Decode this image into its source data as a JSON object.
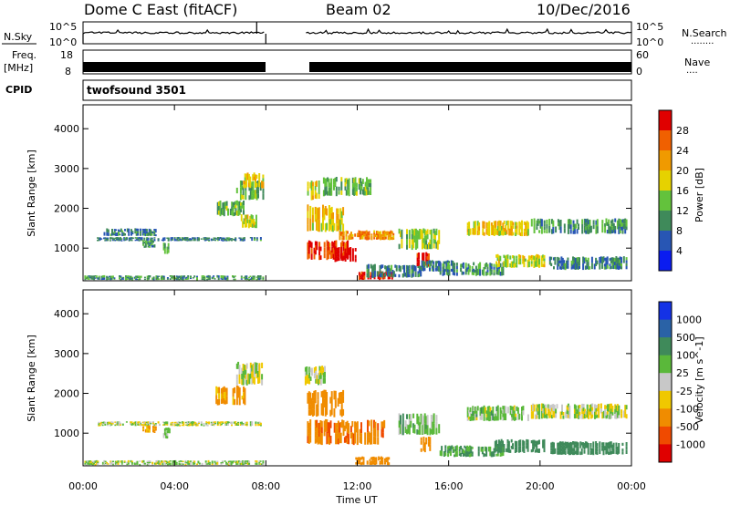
{
  "header": {
    "station": "Dome C East (fitACF)",
    "beam": "Beam 02",
    "date": "10/Dec/2016"
  },
  "strip_labels": {
    "nsky": "N.Sky",
    "nsearch": "N.Search",
    "nsearch_dots": "........",
    "freq_top": "Freq.",
    "freq_unit": "[MHz]",
    "nave": "Nave",
    "nave_dots": "....",
    "cpid": "CPID",
    "cpid_value": "twofsound 3501"
  },
  "strip_ticks": {
    "noise_left": [
      "10^5",
      "10^0"
    ],
    "noise_right": [
      "10^5",
      "10^0"
    ],
    "freq_left": [
      "18",
      "8"
    ],
    "nave_right": [
      "60",
      "0"
    ]
  },
  "x_axis": {
    "label": "Time UT",
    "ticks": [
      "00:00",
      "04:00",
      "08:00",
      "12:00",
      "16:00",
      "20:00",
      "00:00"
    ],
    "range_hours": [
      0,
      24
    ],
    "data_gap_hours": [
      8.0,
      9.7
    ]
  },
  "y_axis": {
    "label": "Slant Range [km]",
    "ticks": [
      "1000",
      "2000",
      "3000",
      "4000"
    ],
    "range_km": [
      180,
      4600
    ]
  },
  "colorbar_power": {
    "label": "Power [dB]",
    "ticks": [
      "4",
      "8",
      "12",
      "16",
      "20",
      "24",
      "28"
    ],
    "colors": [
      "#0a1cf0",
      "#2856b4",
      "#3f8a5a",
      "#63c23c",
      "#e6d200",
      "#f09a00",
      "#f06000",
      "#e00000"
    ]
  },
  "colorbar_velocity": {
    "label": "Velocity [m s^-1]",
    "ticks": [
      "1000",
      "500",
      "100",
      "25",
      "-25",
      "-100",
      "-500",
      "-1000"
    ],
    "colors": [
      "#1432e6",
      "#2a62a6",
      "#3f8a5a",
      "#5ab83a",
      "#c8c8c8",
      "#f0c800",
      "#f08c00",
      "#f04a00",
      "#e00000"
    ]
  },
  "chart_data": [
    {
      "type": "heatmap",
      "title": "Power",
      "xlabel": "Time UT",
      "ylabel": "Slant Range [km]",
      "xlim": [
        0,
        24
      ],
      "ylim": [
        180,
        4600
      ],
      "colorbar_label": "Power [dB]",
      "clim": [
        0,
        30
      ],
      "regions": [
        {
          "t0": 0.0,
          "t1": 7.9,
          "r0": 200,
          "r1": 320,
          "value": 10
        },
        {
          "t0": 0.6,
          "t1": 7.8,
          "r0": 1180,
          "r1": 1280,
          "value": 8
        },
        {
          "t0": 0.9,
          "t1": 3.2,
          "r0": 1300,
          "r1": 1500,
          "value": 8
        },
        {
          "t0": 2.6,
          "t1": 3.2,
          "r0": 1000,
          "r1": 1200,
          "value": 10
        },
        {
          "t0": 3.5,
          "t1": 3.8,
          "r0": 850,
          "r1": 1150,
          "value": 14
        },
        {
          "t0": 5.8,
          "t1": 7.1,
          "r0": 1800,
          "r1": 2200,
          "value": 12
        },
        {
          "t0": 6.7,
          "t1": 7.9,
          "r0": 2200,
          "r1": 2700,
          "value": 12
        },
        {
          "t0": 7.0,
          "t1": 7.9,
          "r0": 2500,
          "r1": 2900,
          "value": 18
        },
        {
          "t0": 6.9,
          "t1": 7.6,
          "r0": 1500,
          "r1": 1850,
          "value": 16
        },
        {
          "t0": 9.7,
          "t1": 10.4,
          "r0": 2200,
          "r1": 2700,
          "value": 16
        },
        {
          "t0": 10.5,
          "t1": 12.6,
          "r0": 2300,
          "r1": 2800,
          "value": 12
        },
        {
          "t0": 9.8,
          "t1": 11.4,
          "r0": 1400,
          "r1": 2100,
          "value": 18
        },
        {
          "t0": 9.8,
          "t1": 11.6,
          "r0": 700,
          "r1": 1200,
          "value": 26
        },
        {
          "t0": 11.0,
          "t1": 12.0,
          "r0": 650,
          "r1": 1050,
          "value": 30
        },
        {
          "t0": 11.2,
          "t1": 13.6,
          "r0": 1200,
          "r1": 1450,
          "value": 22
        },
        {
          "t0": 12.0,
          "t1": 13.6,
          "r0": 200,
          "r1": 420,
          "value": 28
        },
        {
          "t0": 12.4,
          "t1": 14.8,
          "r0": 250,
          "r1": 600,
          "value": 8
        },
        {
          "t0": 13.8,
          "t1": 15.6,
          "r0": 950,
          "r1": 1500,
          "value": 14
        },
        {
          "t0": 14.6,
          "t1": 15.2,
          "r0": 520,
          "r1": 920,
          "value": 28
        },
        {
          "t0": 14.8,
          "t1": 16.2,
          "r0": 400,
          "r1": 700,
          "value": 8
        },
        {
          "t0": 15.6,
          "t1": 18.4,
          "r0": 300,
          "r1": 650,
          "value": 10
        },
        {
          "t0": 16.8,
          "t1": 19.5,
          "r0": 1300,
          "r1": 1700,
          "value": 18
        },
        {
          "t0": 18.0,
          "t1": 20.2,
          "r0": 500,
          "r1": 850,
          "value": 16
        },
        {
          "t0": 19.6,
          "t1": 23.8,
          "r0": 1350,
          "r1": 1750,
          "value": 10
        },
        {
          "t0": 20.4,
          "t1": 23.8,
          "r0": 450,
          "r1": 800,
          "value": 8
        }
      ]
    },
    {
      "type": "heatmap",
      "title": "Velocity",
      "xlabel": "Time UT",
      "ylabel": "Slant Range [km]",
      "xlim": [
        0,
        24
      ],
      "ylim": [
        180,
        4600
      ],
      "colorbar_label": "Velocity [m s^-1]",
      "clim": [
        -1000,
        1000
      ],
      "regions": [
        {
          "t0": 0.0,
          "t1": 7.9,
          "r0": 200,
          "r1": 320,
          "value": 40
        },
        {
          "t0": 0.6,
          "t1": 7.8,
          "r0": 1180,
          "r1": 1300,
          "value": 0
        },
        {
          "t0": 2.6,
          "t1": 3.2,
          "r0": 1000,
          "r1": 1200,
          "value": -150
        },
        {
          "t0": 3.5,
          "t1": 3.8,
          "r0": 850,
          "r1": 1150,
          "value": 60
        },
        {
          "t0": 5.8,
          "t1": 7.1,
          "r0": 1700,
          "r1": 2200,
          "value": -150
        },
        {
          "t0": 6.7,
          "t1": 7.9,
          "r0": 2200,
          "r1": 2800,
          "value": 0
        },
        {
          "t0": 9.7,
          "t1": 10.6,
          "r0": 2200,
          "r1": 2700,
          "value": 0
        },
        {
          "t0": 9.8,
          "t1": 11.4,
          "r0": 1400,
          "r1": 2100,
          "value": -300
        },
        {
          "t0": 9.8,
          "t1": 13.2,
          "r0": 700,
          "r1": 1350,
          "value": -450
        },
        {
          "t0": 11.8,
          "t1": 13.4,
          "r0": 200,
          "r1": 420,
          "value": -200
        },
        {
          "t0": 13.8,
          "t1": 15.6,
          "r0": 950,
          "r1": 1500,
          "value": 80
        },
        {
          "t0": 14.6,
          "t1": 15.2,
          "r0": 520,
          "r1": 920,
          "value": -250
        },
        {
          "t0": 15.6,
          "t1": 18.4,
          "r0": 400,
          "r1": 700,
          "value": 150
        },
        {
          "t0": 16.8,
          "t1": 19.5,
          "r0": 1300,
          "r1": 1700,
          "value": 60
        },
        {
          "t0": 18.0,
          "t1": 20.2,
          "r0": 500,
          "r1": 850,
          "value": 300
        },
        {
          "t0": 19.6,
          "t1": 23.8,
          "r0": 1350,
          "r1": 1750,
          "value": 0
        },
        {
          "t0": 20.4,
          "t1": 23.8,
          "r0": 450,
          "r1": 800,
          "value": 250
        }
      ]
    }
  ]
}
